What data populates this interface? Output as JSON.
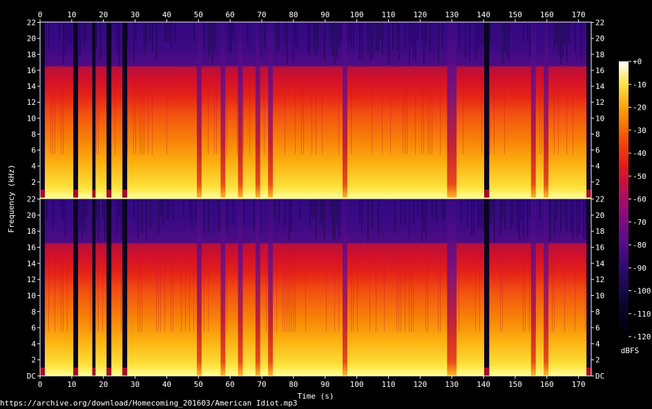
{
  "source_url": "https://archive.org/download/Homecoming_201603/American Idiot.mp3",
  "chart_data": {
    "type": "heatmap",
    "title": "",
    "xlabel": "Time (s)",
    "ylabel": "Frequency (kHz)",
    "xlim": [
      0,
      174
    ],
    "ylim": [
      0,
      22.05
    ],
    "x_ticks": [
      "0",
      "10",
      "20",
      "30",
      "40",
      "50",
      "60",
      "70",
      "80",
      "90",
      "100",
      "110",
      "120",
      "130",
      "140",
      "150",
      "160",
      "170"
    ],
    "y_ticks": [
      "DC",
      "2",
      "4",
      "6",
      "8",
      "10",
      "12",
      "14",
      "16",
      "18",
      "20",
      "22"
    ],
    "channels": 2,
    "colorbar": {
      "label": "dBFS",
      "ticks": [
        "+0",
        "-10",
        "-20",
        "-30",
        "-40",
        "-50",
        "-60",
        "-70",
        "-80",
        "-90",
        "-100",
        "-110",
        "-120"
      ],
      "range": [
        -120,
        0
      ]
    },
    "cutoff_khz": 16.5,
    "quiet_intervals_s": [
      [
        0,
        1.5
      ],
      [
        10.5,
        12
      ],
      [
        16.5,
        17.5
      ],
      [
        21,
        22.5
      ],
      [
        26,
        27.5
      ],
      [
        140.2,
        141.8
      ],
      [
        172.5,
        174
      ]
    ],
    "dips_s": [
      [
        49.5,
        51
      ],
      [
        57,
        58.5
      ],
      [
        62.5,
        64
      ],
      [
        68,
        69.5
      ],
      [
        72,
        73.5
      ],
      [
        95.5,
        97
      ],
      [
        128.5,
        131.5
      ],
      [
        155,
        156.5
      ],
      [
        159,
        160.5
      ]
    ],
    "colors": {
      "background": "#000000",
      "axis": "#ffffff",
      "separator": "#ffffaa"
    }
  }
}
